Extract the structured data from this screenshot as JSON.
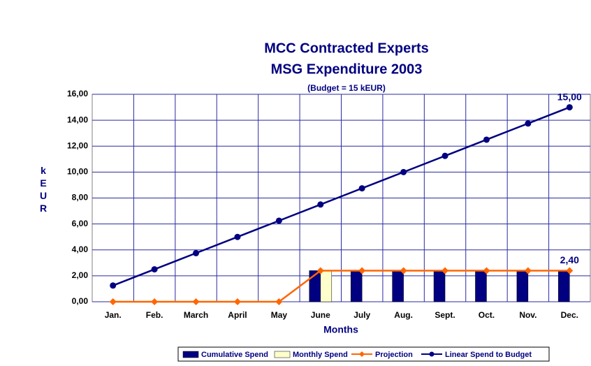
{
  "chart_data": {
    "type": "bar",
    "title": "MCC Contracted Experts",
    "subtitle": "MSG Expenditure 2003",
    "note": "(Budget = 15 kEUR)",
    "xlabel": "Months",
    "ylabel": "kEUR",
    "categories": [
      "Jan.",
      "Feb.",
      "March",
      "April",
      "May",
      "June",
      "July",
      "Aug.",
      "Sept.",
      "Oct.",
      "Nov.",
      "Dec."
    ],
    "ylim": [
      0,
      16
    ],
    "yticks": [
      {
        "value": 0,
        "label": "0,00"
      },
      {
        "value": 2,
        "label": "2,00"
      },
      {
        "value": 4,
        "label": "4,00"
      },
      {
        "value": 6,
        "label": "6,00"
      },
      {
        "value": 8,
        "label": "8,00"
      },
      {
        "value": 10,
        "label": "10,00"
      },
      {
        "value": 12,
        "label": "12,00"
      },
      {
        "value": 14,
        "label": "14,00"
      },
      {
        "value": 16,
        "label": "16,00"
      }
    ],
    "grid": true,
    "legend": "bottom",
    "series": [
      {
        "name": "Cumulative Spend",
        "type": "bar",
        "color": "#000080",
        "values": [
          0,
          0,
          0,
          0,
          0,
          2.4,
          2.4,
          2.4,
          2.4,
          2.4,
          2.4,
          2.4
        ]
      },
      {
        "name": "Monthly Spend",
        "type": "bar",
        "color": "#ffffcc",
        "values": [
          0,
          0,
          0,
          0,
          0,
          2.4,
          0,
          0,
          0,
          0,
          0,
          0
        ]
      },
      {
        "name": "Projection",
        "type": "line",
        "marker": "diamond",
        "color": "#ff6600",
        "values": [
          0,
          0,
          0,
          0,
          0,
          2.4,
          2.4,
          2.4,
          2.4,
          2.4,
          2.4,
          2.4
        ],
        "value_labels": [
          null,
          null,
          null,
          null,
          null,
          null,
          null,
          null,
          null,
          null,
          null,
          "2,40"
        ]
      },
      {
        "name": "Linear Spend to Budget",
        "type": "line",
        "marker": "circle",
        "color": "#000080",
        "values": [
          1.25,
          2.5,
          3.75,
          5,
          6.25,
          7.5,
          8.75,
          10,
          11.25,
          12.5,
          13.75,
          15
        ],
        "value_labels": [
          null,
          null,
          null,
          null,
          null,
          null,
          null,
          null,
          null,
          null,
          null,
          "15,00"
        ]
      }
    ]
  }
}
